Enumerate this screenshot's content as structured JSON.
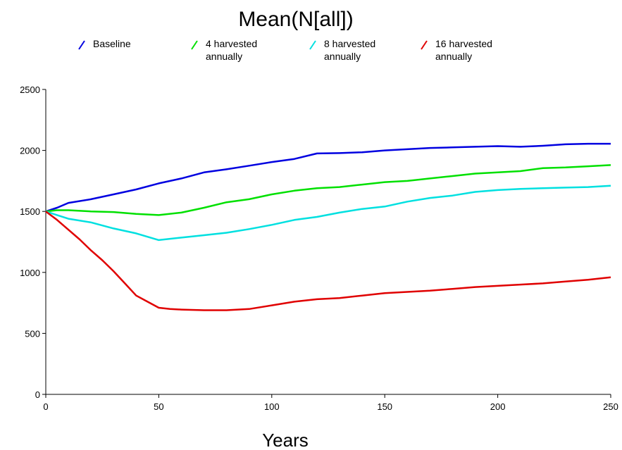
{
  "chart_data": {
    "type": "line",
    "title": "Mean(N[all])",
    "xlabel": "Years",
    "ylabel": "",
    "xlim": [
      0,
      250
    ],
    "ylim": [
      0,
      2500
    ],
    "xticks": [
      0,
      50,
      100,
      150,
      200,
      250
    ],
    "yticks": [
      0,
      500,
      1000,
      1500,
      2000,
      2500
    ],
    "grid": false,
    "legend_position": "top",
    "series": [
      {
        "name": "Baseline",
        "legend_lines": [
          "Baseline"
        ],
        "color": "#0000e0",
        "x": [
          0,
          5,
          10,
          20,
          30,
          40,
          50,
          60,
          70,
          80,
          90,
          100,
          110,
          120,
          130,
          140,
          150,
          160,
          170,
          180,
          190,
          200,
          210,
          220,
          230,
          240,
          250
        ],
        "y": [
          1500,
          1530,
          1570,
          1600,
          1640,
          1680,
          1730,
          1770,
          1820,
          1845,
          1875,
          1905,
          1930,
          1975,
          1978,
          1985,
          2000,
          2010,
          2020,
          2025,
          2030,
          2035,
          2030,
          2038,
          2050,
          2055,
          2055
        ]
      },
      {
        "name": "4 harvested annually",
        "legend_lines": [
          "4 harvested",
          "annually"
        ],
        "color": "#00e000",
        "x": [
          0,
          5,
          10,
          20,
          30,
          40,
          50,
          60,
          70,
          80,
          90,
          100,
          110,
          120,
          130,
          140,
          150,
          160,
          170,
          180,
          190,
          200,
          210,
          220,
          230,
          240,
          250
        ],
        "y": [
          1500,
          1510,
          1510,
          1500,
          1495,
          1480,
          1470,
          1490,
          1530,
          1575,
          1600,
          1640,
          1670,
          1690,
          1700,
          1720,
          1740,
          1750,
          1770,
          1790,
          1810,
          1820,
          1830,
          1855,
          1860,
          1870,
          1880
        ]
      },
      {
        "name": "8 harvested annually",
        "legend_lines": [
          "8 harvested",
          "annually"
        ],
        "color": "#00e0e0",
        "x": [
          0,
          5,
          10,
          20,
          30,
          40,
          50,
          60,
          70,
          80,
          90,
          100,
          110,
          120,
          130,
          140,
          150,
          160,
          170,
          180,
          190,
          200,
          210,
          220,
          230,
          240,
          250
        ],
        "y": [
          1500,
          1470,
          1440,
          1410,
          1360,
          1320,
          1265,
          1285,
          1305,
          1325,
          1355,
          1390,
          1430,
          1455,
          1490,
          1520,
          1540,
          1580,
          1610,
          1630,
          1660,
          1675,
          1685,
          1690,
          1695,
          1700,
          1710
        ]
      },
      {
        "name": "16 harvested annually",
        "legend_lines": [
          "16 harvested",
          "annually"
        ],
        "color": "#e00000",
        "x": [
          0,
          5,
          10,
          15,
          20,
          25,
          30,
          35,
          40,
          45,
          50,
          55,
          60,
          70,
          80,
          90,
          100,
          110,
          120,
          130,
          140,
          150,
          160,
          170,
          180,
          190,
          200,
          210,
          220,
          230,
          240,
          250
        ],
        "y": [
          1500,
          1430,
          1350,
          1270,
          1180,
          1100,
          1010,
          910,
          810,
          760,
          710,
          700,
          695,
          690,
          690,
          700,
          730,
          760,
          780,
          790,
          810,
          830,
          840,
          850,
          865,
          880,
          890,
          900,
          910,
          925,
          940,
          960
        ]
      }
    ]
  }
}
